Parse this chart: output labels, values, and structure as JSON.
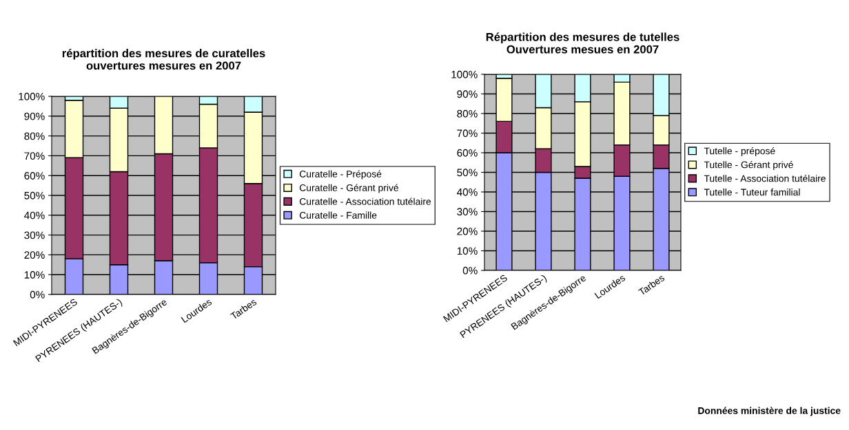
{
  "chart_data": [
    {
      "type": "bar",
      "stacked": true,
      "title": "répartition des mesures de curatelles\nouvertures mesures en 2007",
      "categories": [
        "MIDI-PYRENEES",
        "PYRENEES (HAUTES-)",
        "Bagnères-de-Bigorre",
        "Lourdes",
        "Tarbes"
      ],
      "series": [
        {
          "name": "Curatelle - Famille",
          "color": "#9999ff",
          "values": [
            18,
            15,
            17,
            16,
            14
          ]
        },
        {
          "name": "Curatelle - Association tutélaire",
          "color": "#993366",
          "values": [
            51,
            47,
            54,
            58,
            42
          ]
        },
        {
          "name": "Curatelle - Gérant privé",
          "color": "#ffffcc",
          "values": [
            29,
            32,
            29,
            22,
            36
          ]
        },
        {
          "name": "Curatelle - Préposé",
          "color": "#ccffff",
          "values": [
            2,
            6,
            null,
            4,
            8
          ]
        }
      ],
      "ylim": [
        0,
        100
      ],
      "yticks": [
        {
          "value": 0,
          "label": "0%"
        },
        {
          "value": 10,
          "label": "10%"
        },
        {
          "value": 20,
          "label": "20%"
        },
        {
          "value": 30,
          "label": "30%"
        },
        {
          "value": 40,
          "label": "40%"
        },
        {
          "value": 50,
          "label": "50%"
        },
        {
          "value": 60,
          "label": "60%"
        },
        {
          "value": 70,
          "label": "70%"
        },
        {
          "value": 80,
          "label": "80%"
        },
        {
          "value": 90,
          "label": "90%"
        },
        {
          "value": 100,
          "label": "100%"
        }
      ],
      "grid": "y",
      "legend": "right"
    },
    {
      "type": "bar",
      "stacked": true,
      "title": "Répartition des mesures de tutelles\nOuvertures mesues en 2007",
      "categories": [
        "MIDI-PYRENEES",
        "PYRENEES (HAUTES-)",
        "Bagnères-de-Bigorre",
        "Lourdes",
        "Tarbes"
      ],
      "series": [
        {
          "name": "Tutelle - Tuteur familial",
          "color": "#9999ff",
          "values": [
            60,
            50,
            47,
            48,
            52
          ]
        },
        {
          "name": "Tutelle - Association tutélaire",
          "color": "#993366",
          "values": [
            16,
            12,
            6,
            16,
            12
          ]
        },
        {
          "name": "Tutelle - Gérant privé",
          "color": "#ffffcc",
          "values": [
            22,
            21,
            33,
            32,
            15
          ]
        },
        {
          "name": "Tutelle - préposé",
          "color": "#ccffff",
          "values": [
            2,
            17,
            14,
            4,
            21
          ]
        }
      ],
      "ylim": [
        0,
        100
      ],
      "yticks": [
        {
          "value": 0,
          "label": "0%"
        },
        {
          "value": 10,
          "label": "10%"
        },
        {
          "value": 20,
          "label": "20%"
        },
        {
          "value": 30,
          "label": "30%"
        },
        {
          "value": 40,
          "label": "40%"
        },
        {
          "value": 50,
          "label": "50%"
        },
        {
          "value": 60,
          "label": "60%"
        },
        {
          "value": 70,
          "label": "70%"
        },
        {
          "value": 80,
          "label": "80%"
        },
        {
          "value": 90,
          "label": "90%"
        },
        {
          "value": 100,
          "label": "100%"
        }
      ],
      "grid": "y",
      "legend": "right",
      "annotations": [
        "Données ministère de la justice"
      ]
    }
  ]
}
